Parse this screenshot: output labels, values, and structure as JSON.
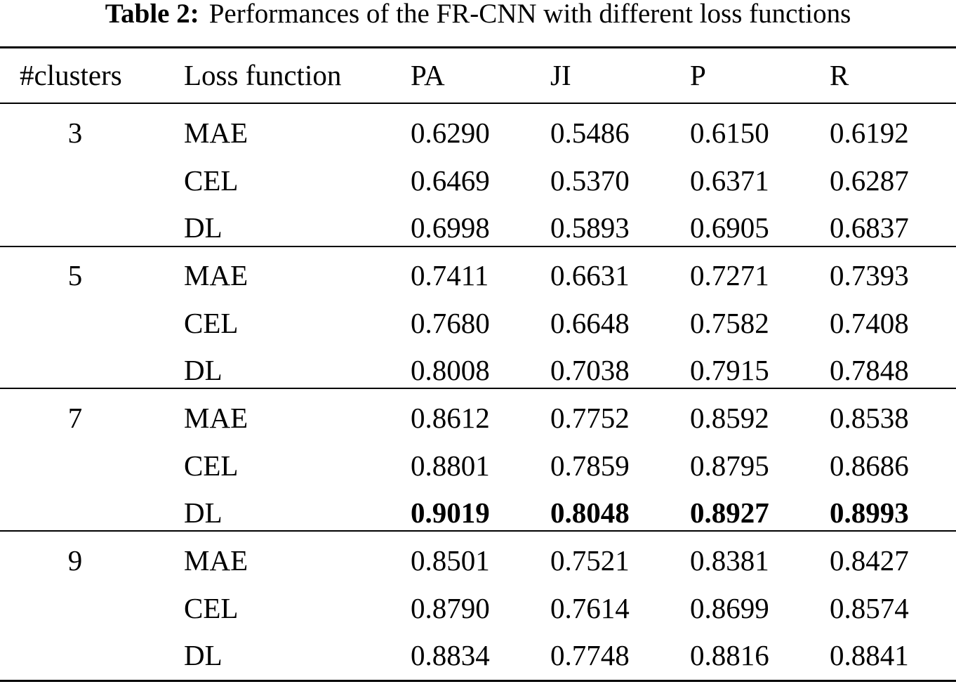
{
  "caption": {
    "label": "Table 2:",
    "text": "Performances of the FR-CNN with different loss functions"
  },
  "table": {
    "headers": [
      "#clusters",
      "Loss function",
      "PA",
      "JI",
      "P",
      "R"
    ],
    "groups": [
      {
        "clusters": "3",
        "rows": [
          {
            "loss": "MAE",
            "values": [
              "0.6290",
              "0.5486",
              "0.6150",
              "0.6192"
            ],
            "bold": false
          },
          {
            "loss": "CEL",
            "values": [
              "0.6469",
              "0.5370",
              "0.6371",
              "0.6287"
            ],
            "bold": false
          },
          {
            "loss": "DL",
            "values": [
              "0.6998",
              "0.5893",
              "0.6905",
              "0.6837"
            ],
            "bold": false
          }
        ]
      },
      {
        "clusters": "5",
        "rows": [
          {
            "loss": "MAE",
            "values": [
              "0.7411",
              "0.6631",
              "0.7271",
              "0.7393"
            ],
            "bold": false
          },
          {
            "loss": "CEL",
            "values": [
              "0.7680",
              "0.6648",
              "0.7582",
              "0.7408"
            ],
            "bold": false
          },
          {
            "loss": "DL",
            "values": [
              "0.8008",
              "0.7038",
              "0.7915",
              "0.7848"
            ],
            "bold": false
          }
        ]
      },
      {
        "clusters": "7",
        "rows": [
          {
            "loss": "MAE",
            "values": [
              "0.8612",
              "0.7752",
              "0.8592",
              "0.8538"
            ],
            "bold": false
          },
          {
            "loss": "CEL",
            "values": [
              "0.8801",
              "0.7859",
              "0.8795",
              "0.8686"
            ],
            "bold": false
          },
          {
            "loss": "DL",
            "values": [
              "0.9019",
              "0.8048",
              "0.8927",
              "0.8993"
            ],
            "bold": true
          }
        ]
      },
      {
        "clusters": "9",
        "rows": [
          {
            "loss": "MAE",
            "values": [
              "0.8501",
              "0.7521",
              "0.8381",
              "0.8427"
            ],
            "bold": false
          },
          {
            "loss": "CEL",
            "values": [
              "0.8790",
              "0.7614",
              "0.8699",
              "0.8574"
            ],
            "bold": false
          },
          {
            "loss": "DL",
            "values": [
              "0.8834",
              "0.7748",
              "0.8816",
              "0.8841"
            ],
            "bold": false
          }
        ]
      }
    ]
  }
}
